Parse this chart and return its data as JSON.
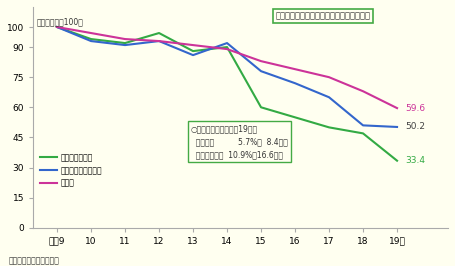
{
  "years": [
    9,
    10,
    11,
    12,
    13,
    14,
    15,
    16,
    17,
    18,
    19
  ],
  "drunk_driving": [
    100,
    94,
    92,
    97,
    88,
    90,
    60,
    55,
    50,
    47,
    33.4
  ],
  "speed_violation": [
    100,
    93,
    91,
    93,
    86,
    92,
    78,
    72,
    65,
    51,
    50.2
  ],
  "fatalities": [
    100,
    97,
    94,
    93,
    91,
    89,
    83,
    79,
    75,
    68,
    59.6
  ],
  "drunk_color": "#33aa44",
  "speed_color": "#3366cc",
  "fatalities_color": "#cc3399",
  "end_label_drunk": "33.4",
  "end_label_speed": "50.2",
  "end_label_fatalities": "59.6",
  "background_color": "#fffff0",
  "title_box_text": "飲酒運転等悪質・危険性の高い事故が減少",
  "ylabel_text": "（平成９年＝100）",
  "legend_lines": [
    "飲酒運転構成率",
    "最高速度違反構成率",
    "死者数"
  ],
  "box_title": "○死亡事故率の違い（19年）",
  "box_line1": "  飲酒運転          5.7%（  8.4倍）",
  "box_line2": "  最高速度違反  10.9%（16.6倍）",
  "note_text": "注　警察庁資料による。",
  "yticks": [
    0,
    15,
    30,
    45,
    60,
    75,
    90,
    100
  ],
  "xlabels": [
    "平成9",
    "10",
    "11",
    "12",
    "13",
    "14",
    "15",
    "16",
    "17",
    "18",
    "19年"
  ]
}
